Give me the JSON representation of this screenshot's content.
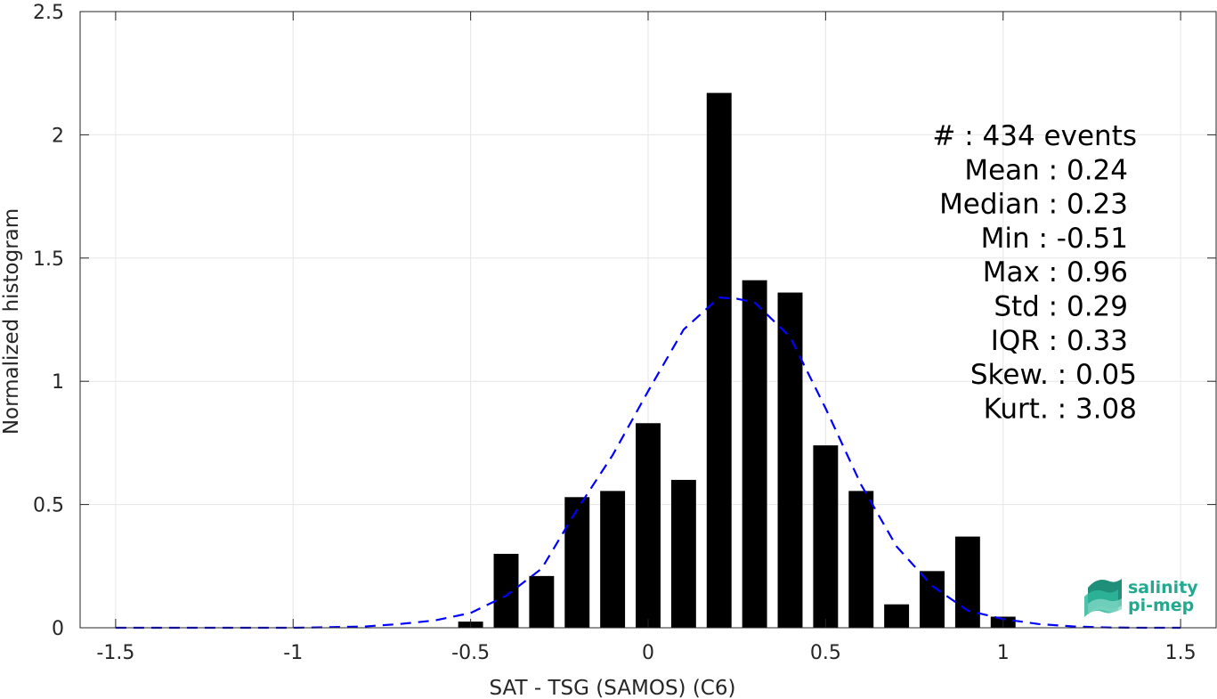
{
  "chart_data": {
    "type": "bar",
    "xlabel": "SAT - TSG (SAMOS) (C6)",
    "ylabel": "Normalized histogram",
    "xlim": [
      -1.6,
      1.6
    ],
    "ylim": [
      0,
      2.5
    ],
    "xticks": [
      -1.5,
      -1,
      -0.5,
      0,
      0.5,
      1,
      1.5
    ],
    "xtick_labels": [
      "-1.5",
      "-1",
      "-0.5",
      "0",
      "0.5",
      "1",
      "1.5"
    ],
    "yticks": [
      0,
      0.5,
      1,
      1.5,
      2,
      2.5
    ],
    "ytick_labels": [
      "0",
      "0.5",
      "1",
      "1.5",
      "2",
      "2.5"
    ],
    "grid": true,
    "bins": {
      "centers": [
        -0.5,
        -0.4,
        -0.3,
        -0.2,
        -0.1,
        0.0,
        0.1,
        0.2,
        0.3,
        0.4,
        0.5,
        0.6,
        0.7,
        0.8,
        0.9,
        1.0
      ],
      "values": [
        0.025,
        0.3,
        0.21,
        0.53,
        0.555,
        0.83,
        0.6,
        2.17,
        1.41,
        1.36,
        0.74,
        0.555,
        0.095,
        0.23,
        0.37,
        0.045
      ],
      "width": 0.07,
      "color": "#000000"
    },
    "fit_curve": {
      "style": "dashed",
      "color": "#0000ff",
      "x": [
        -1.5,
        -1.4,
        -1.3,
        -1.2,
        -1.1,
        -1.0,
        -0.9,
        -0.8,
        -0.7,
        -0.6,
        -0.5,
        -0.4,
        -0.3,
        -0.2,
        -0.1,
        0.0,
        0.1,
        0.2,
        0.25,
        0.3,
        0.4,
        0.5,
        0.6,
        0.7,
        0.8,
        0.9,
        1.0,
        1.1,
        1.2,
        1.3,
        1.4,
        1.5
      ],
      "y": [
        0.0,
        0.0,
        0.0,
        0.0,
        0.0,
        0.0,
        0.002,
        0.005,
        0.015,
        0.03,
        0.06,
        0.13,
        0.24,
        0.48,
        0.7,
        0.96,
        1.21,
        1.34,
        1.335,
        1.32,
        1.18,
        0.89,
        0.58,
        0.33,
        0.17,
        0.07,
        0.035,
        0.015,
        0.005,
        0.001,
        0.0,
        0.0
      ]
    },
    "stats": [
      {
        "label": "#  : 434 events"
      },
      {
        "label": "Mean : 0.24"
      },
      {
        "label": "Median : 0.23"
      },
      {
        "label": "Min : -0.51"
      },
      {
        "label": "Max : 0.96"
      },
      {
        "label": "Std : 0.29"
      },
      {
        "label": "IQR : 0.33"
      },
      {
        "label": "Skew. : 0.05"
      },
      {
        "label": "Kurt. : 3.08"
      }
    ]
  },
  "logo": {
    "line1": "salinity",
    "line2": "pi-mep",
    "color": "#23a98f"
  }
}
